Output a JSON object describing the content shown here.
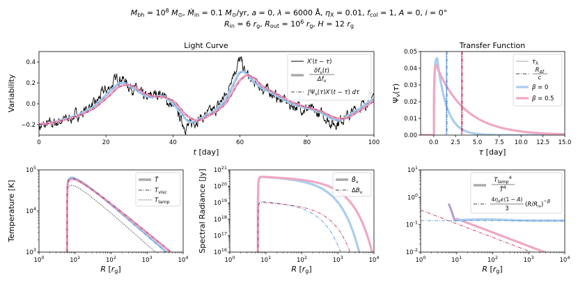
{
  "suptitle": {
    "line1": "M_bh = 10^8 M_⊙ , Ṁ_in = 0.1 M_⊙/yr, a = 0, λ = 6000 Å, η_X = 0.01, f_col = 1, A = 0, i = 0°",
    "line2": "R_in = 6 r_g, R_out = 10^6 r_g, H = 12 r_g"
  },
  "colors": {
    "blue": "#a9cdee",
    "pink": "#f0a8c2",
    "gray": "#aaaaaa",
    "black": "#000000"
  },
  "chart_data": [
    {
      "id": "light-curve",
      "type": "line",
      "title": "Light Curve",
      "xlabel": "t [day]",
      "ylabel": "Variability",
      "xlim": [
        0,
        100
      ],
      "ylim": [
        -0.28,
        0.52
      ],
      "xticks": [
        0,
        20,
        40,
        60,
        80,
        100
      ],
      "yticks": [
        -0.2,
        0.0,
        0.2,
        0.4
      ],
      "legend": "top-right",
      "legend_entries": [
        "X′(t − τ)",
        "δf_ν(t) / Δf_ν",
        "∫Ψ_ν(τ)X′(t − τ) dτ"
      ],
      "anchors": {
        "t": [
          0,
          4,
          8,
          12,
          16,
          20,
          24,
          28,
          32,
          36,
          40,
          44,
          48,
          52,
          56,
          58,
          60,
          62,
          64,
          68,
          72,
          76,
          80,
          84,
          88,
          92,
          96,
          100
        ],
        "x": [
          -0.2,
          -0.17,
          -0.13,
          -0.08,
          0.0,
          0.15,
          0.27,
          0.17,
          0.08,
          0.12,
          0.0,
          -0.2,
          -0.12,
          -0.05,
          0.1,
          0.32,
          0.43,
          0.3,
          0.22,
          0.15,
          0.07,
          0.0,
          -0.03,
          -0.08,
          -0.17,
          -0.1,
          0.0,
          0.1
        ]
      }
    },
    {
      "id": "transfer-function",
      "type": "line",
      "title": "Transfer Function",
      "xlabel": "τ [day]",
      "ylabel": "Ψ_ν(τ)",
      "xlim": [
        -1.5,
        15
      ],
      "ylim": [
        0,
        0.05
      ],
      "xticks": [
        0.0,
        2.5,
        5.0,
        7.5,
        10.0,
        12.5,
        15.0
      ],
      "yticks": [
        0.0,
        0.01,
        0.02,
        0.03,
        0.04,
        0.05
      ],
      "legend": "top-right",
      "legend_entries": [
        "τ_λ",
        "R_Δf / c",
        "β = 0",
        "β = 0.5"
      ],
      "tau_lambda": {
        "beta0": 1.45,
        "beta05": 3.2
      },
      "series": [
        {
          "name": "β = 0",
          "peak_tau": 0.4,
          "peak": 0.046,
          "decay": 1.1
        },
        {
          "name": "β = 0.5",
          "peak_tau": 0.28,
          "peak": 0.042,
          "decay": 3.3
        }
      ]
    },
    {
      "id": "temperature",
      "type": "line",
      "xlabel": "R [r_g]",
      "ylabel": "Temperature [K]",
      "xscale": "log",
      "yscale": "log",
      "xlim": [
        1,
        10000
      ],
      "ylim": [
        1000,
        100000
      ],
      "xticks": [
        1,
        10,
        100,
        1000,
        10000
      ],
      "yticks": [
        1000,
        10000,
        100000
      ],
      "legend": "top-right",
      "legend_entries": [
        "T̄",
        "T_visc",
        "T_lamp"
      ],
      "r_in": 6,
      "t_peak_blue": 65000,
      "t_peak_pink": 60000,
      "t_lamp_peak": 42000
    },
    {
      "id": "spectral-radiance",
      "type": "line",
      "xlabel": "R [r_g]",
      "ylabel": "Spectral Radiance [Jy]",
      "xscale": "log",
      "yscale": "log",
      "xlim": [
        1,
        10000
      ],
      "ylim": [
        1e+16,
        1e+21
      ],
      "xticks": [
        1,
        10,
        100,
        1000,
        10000
      ],
      "yticks": [
        1e+16,
        1e+17,
        1e+18,
        1e+19,
        1e+20,
        1e+21
      ],
      "legend": "top-right",
      "legend_entries": [
        "B̄_ν",
        "ΔB_ν"
      ],
      "b_peak": 4e+20,
      "db_peak": 1.3e+19
    },
    {
      "id": "lamp-ratio",
      "type": "line",
      "xlabel": "R [r_g]",
      "xscale": "log",
      "yscale": "log",
      "xlim": [
        1,
        10000
      ],
      "ylim": [
        0.01,
        10
      ],
      "xticks": [
        1,
        10,
        100,
        1000,
        10000
      ],
      "yticks": [
        0.01,
        0.1,
        1,
        10
      ],
      "legend": "top-right",
      "legend_entries": [
        "T_lamp⁴ / T̄⁴",
        "4η_X ε(1 − A)/3 (R/R_in)^−β"
      ],
      "plateau": 0.14
    }
  ]
}
